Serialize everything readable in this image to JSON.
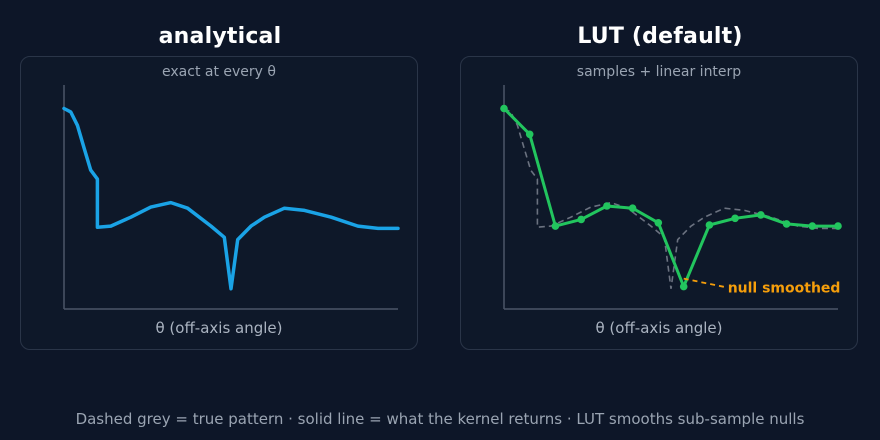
{
  "panels": {
    "analytical": {
      "title": "analytical",
      "subtitle": "exact at every θ",
      "xlabel": "θ (off-axis angle)"
    },
    "lut": {
      "title": "LUT (default)",
      "subtitle": "samples + linear interp",
      "xlabel": "θ (off-axis angle)",
      "annotation": "null smoothed"
    }
  },
  "footer": "Dashed grey = true pattern · solid line = what the kernel returns · LUT smooths sub-sample nulls",
  "colors": {
    "background": "#0d1628",
    "panel_border": "#2a3548",
    "analytical_line": "#1aa3e6",
    "lut_line": "#22c55e",
    "true_pattern": "#6b7280",
    "annotation": "#f59e0b"
  },
  "chart_data": {
    "type": "line",
    "true_pattern": {
      "line_style": "dashed grey",
      "x": [
        0,
        0.02,
        0.04,
        0.06,
        0.08,
        0.1,
        0.1001,
        0.14,
        0.2,
        0.26,
        0.32,
        0.37,
        0.44,
        0.48,
        0.5,
        0.52,
        0.56,
        0.6,
        0.66,
        0.72,
        0.8,
        0.88,
        0.94,
        1.0
      ],
      "y": [
        0.895,
        0.88,
        0.82,
        0.72,
        0.62,
        0.58,
        0.365,
        0.37,
        0.41,
        0.455,
        0.475,
        0.45,
        0.37,
        0.32,
        0.09,
        0.31,
        0.37,
        0.41,
        0.45,
        0.44,
        0.41,
        0.37,
        0.36,
        0.36
      ]
    },
    "lut_samples": {
      "line_style": "solid green with markers",
      "x": [
        0,
        0.077,
        0.154,
        0.231,
        0.308,
        0.385,
        0.462,
        0.538,
        0.615,
        0.692,
        0.769,
        0.846,
        0.923,
        1.0
      ],
      "y": [
        0.895,
        0.78,
        0.37,
        0.4,
        0.46,
        0.45,
        0.385,
        0.1,
        0.375,
        0.405,
        0.42,
        0.38,
        0.37,
        0.37
      ]
    },
    "null_annotation_at": {
      "x": 0.538,
      "y": 0.1
    }
  }
}
